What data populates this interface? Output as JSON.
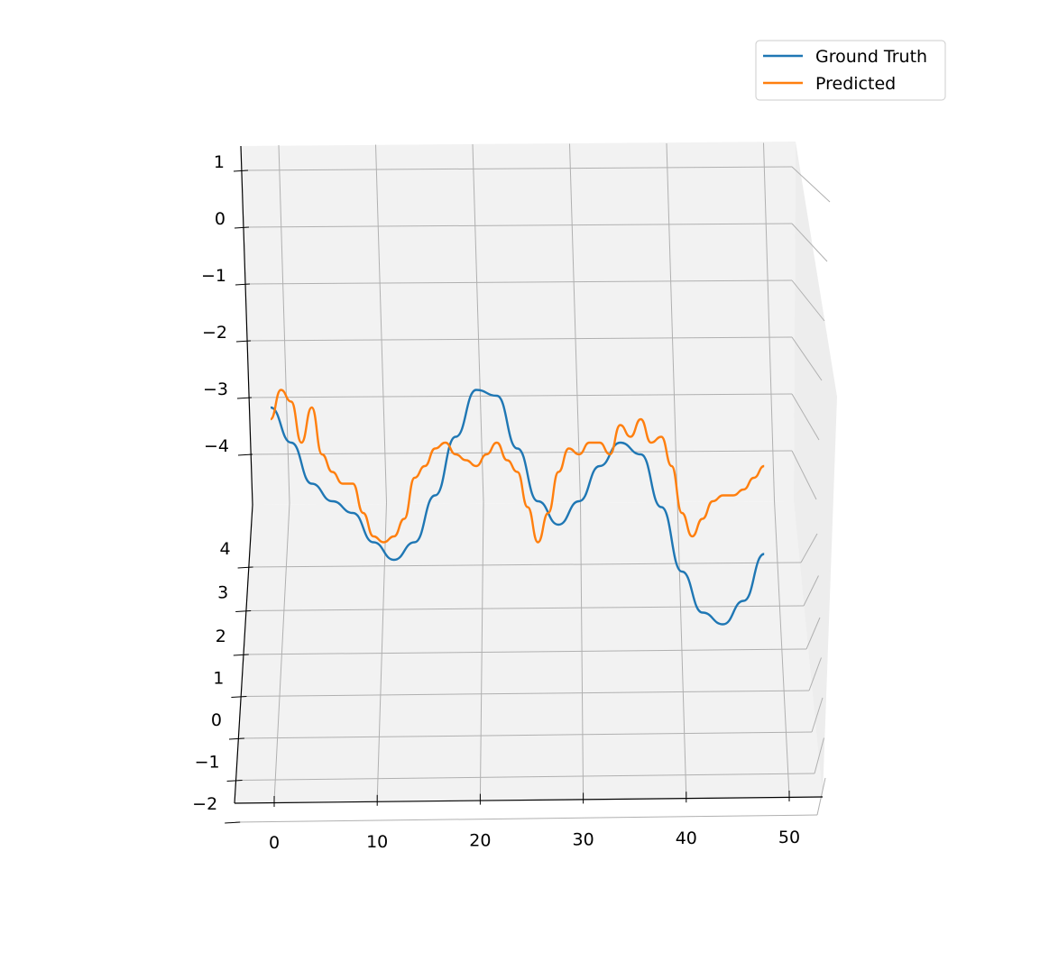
{
  "chart_data": {
    "type": "line",
    "projection": "3d",
    "title": "",
    "xlabel": "",
    "ylabel": "",
    "zlabel": "",
    "x_ticks": [
      0,
      10,
      20,
      30,
      40,
      50
    ],
    "y_ticks": [
      -2,
      -1,
      0,
      1,
      2,
      3,
      4
    ],
    "z_ticks": [
      -4,
      -3,
      -2,
      -1,
      0,
      1
    ],
    "x_tick_labels": [
      "0",
      "10",
      "20",
      "30",
      "40",
      "50"
    ],
    "y_tick_labels": [
      "−2",
      "−1",
      "0",
      "1",
      "2",
      "3",
      "4"
    ],
    "z_tick_labels": [
      "−4",
      "−3",
      "−2",
      "−1",
      "0",
      "1"
    ],
    "grid": true,
    "legend_position": "top-right",
    "legend": [
      "Ground Truth",
      "Predicted"
    ],
    "colors": {
      "ground_truth": "#1f77b4",
      "predicted": "#ff7f0e",
      "grid": "#b0b0b0",
      "pane": "#f2f2f2",
      "axis": "#000000"
    },
    "series": [
      {
        "name": "Ground Truth",
        "x": [
          0,
          2,
          4,
          6,
          8,
          10,
          12,
          14,
          16,
          18,
          20,
          22,
          24,
          26,
          28,
          30,
          32,
          34,
          36,
          38,
          40,
          42,
          44,
          46,
          48
        ],
        "y": [
          -3.3,
          -3.9,
          -4.6,
          -4.9,
          -5.1,
          -5.6,
          -5.9,
          -5.6,
          -4.8,
          -3.8,
          -3.0,
          -3.1,
          -4.0,
          -4.9,
          -5.3,
          -4.9,
          -4.3,
          -3.9,
          -4.1,
          -5.0,
          -6.1,
          -6.8,
          -7.0,
          -6.6,
          -5.8
        ]
      },
      {
        "name": "Predicted",
        "x": [
          0,
          1,
          2,
          3,
          4,
          5,
          6,
          7,
          8,
          9,
          10,
          11,
          12,
          13,
          14,
          15,
          16,
          17,
          18,
          19,
          20,
          21,
          22,
          23,
          24,
          25,
          26,
          27,
          28,
          29,
          30,
          31,
          32,
          33,
          34,
          35,
          36,
          37,
          38,
          39,
          40,
          41,
          42,
          43,
          44,
          45,
          46,
          47,
          48
        ],
        "y": [
          -3.5,
          -3.0,
          -3.2,
          -3.9,
          -3.3,
          -4.1,
          -4.4,
          -4.6,
          -4.6,
          -5.1,
          -5.5,
          -5.6,
          -5.5,
          -5.2,
          -4.5,
          -4.3,
          -4.0,
          -3.9,
          -4.1,
          -4.2,
          -4.3,
          -4.1,
          -3.9,
          -4.2,
          -4.4,
          -5.0,
          -5.6,
          -5.1,
          -4.4,
          -4.0,
          -4.1,
          -3.9,
          -3.9,
          -4.1,
          -3.6,
          -3.8,
          -3.5,
          -3.9,
          -3.8,
          -4.3,
          -5.1,
          -5.5,
          -5.2,
          -4.9,
          -4.8,
          -4.8,
          -4.7,
          -4.5,
          -4.3
        ]
      }
    ]
  }
}
